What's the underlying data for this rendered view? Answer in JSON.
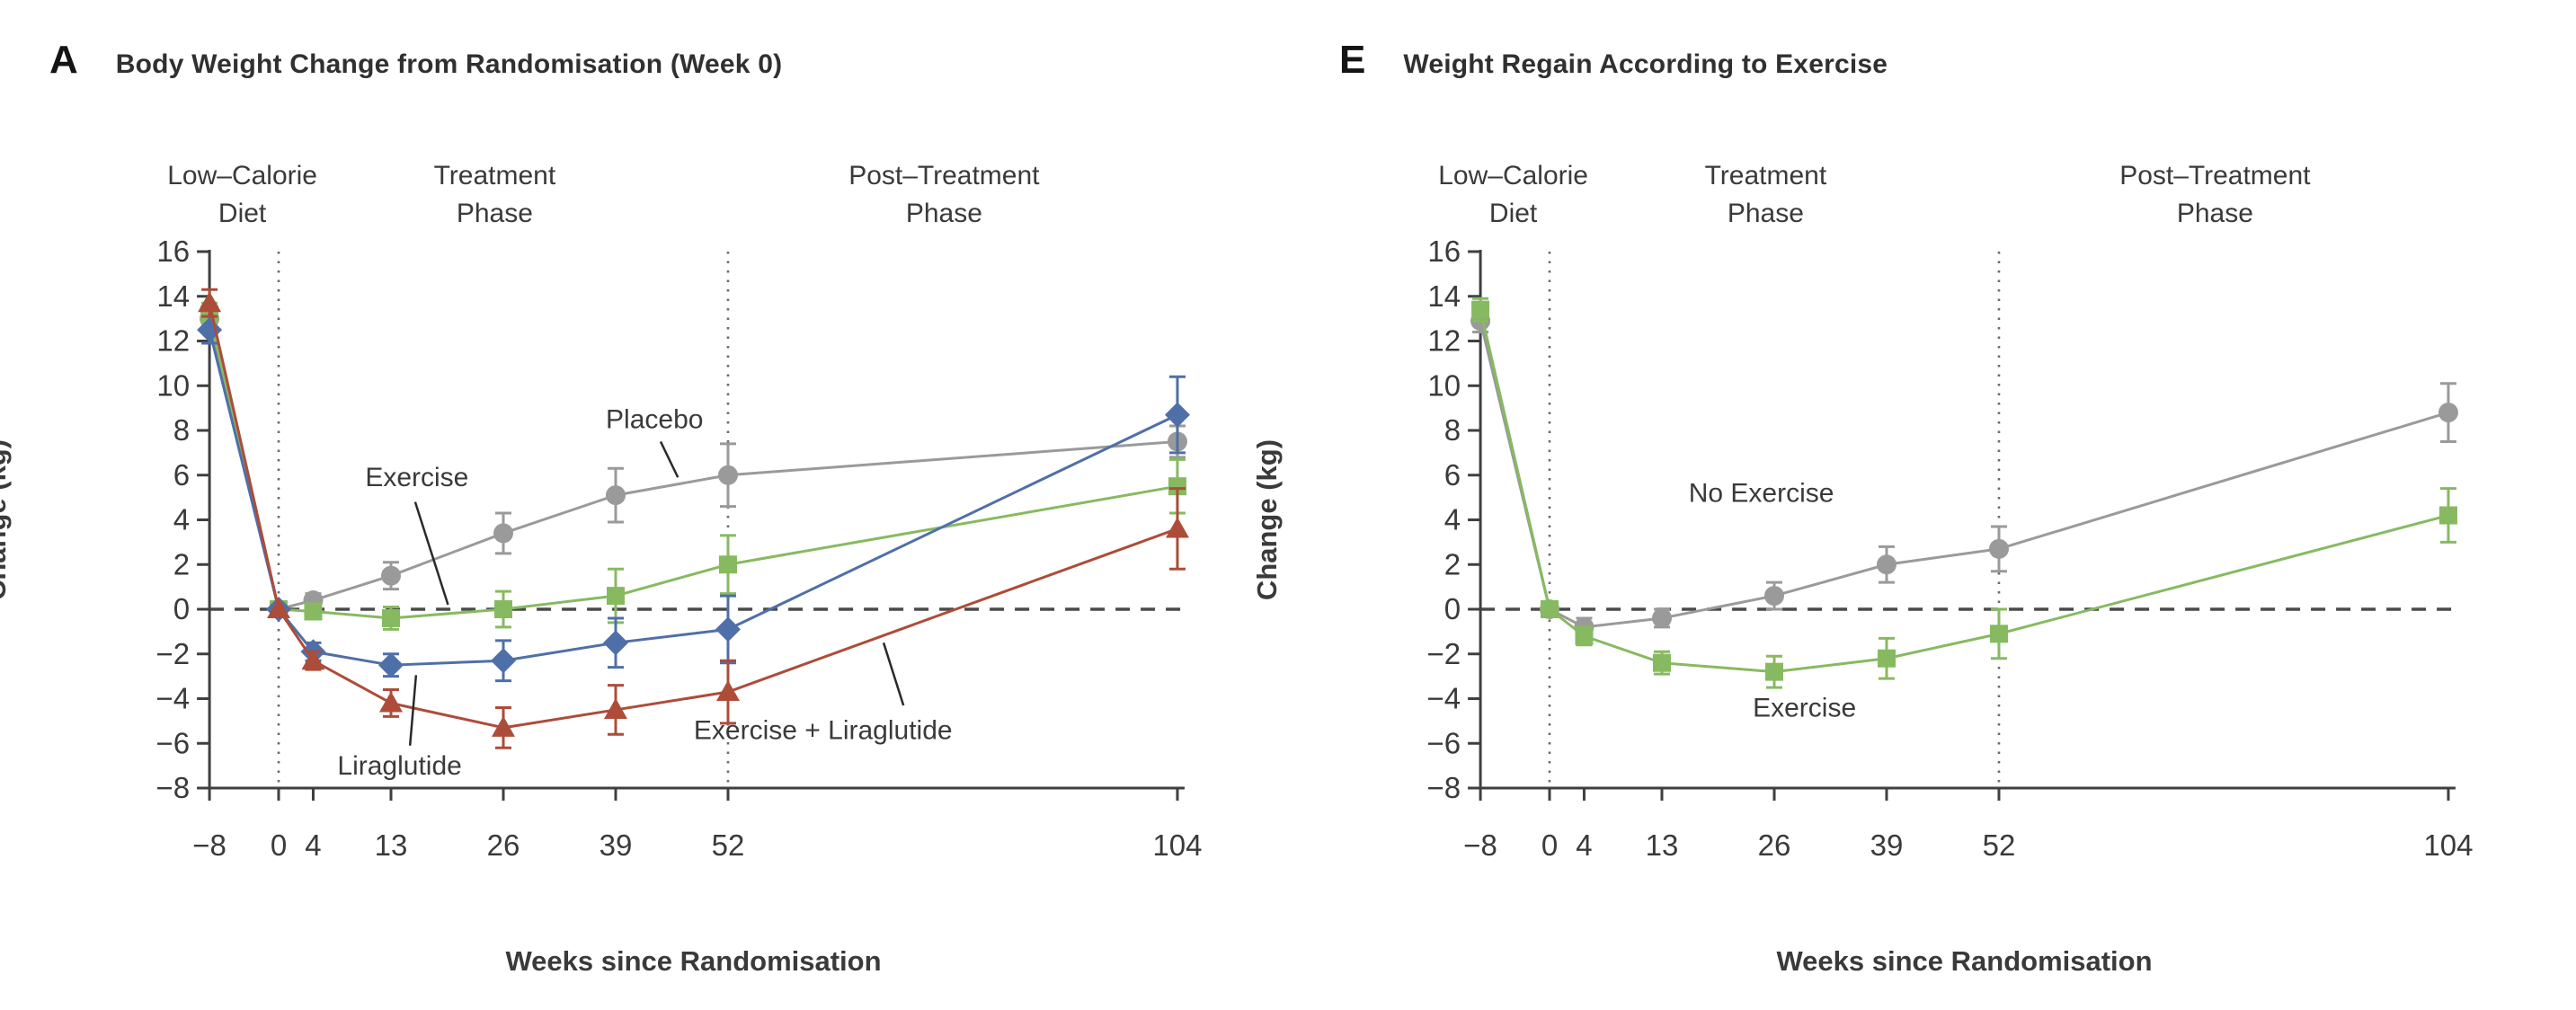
{
  "figure": {
    "background": "#ffffff"
  },
  "chart_data": [
    {
      "type": "line",
      "panel_letter": "A",
      "title": "Body Weight Change from Randomisation (Week 0)",
      "xlabel": "Weeks since Randomisation",
      "ylabel": "Change (kg)",
      "x_weeks": [
        -8,
        0,
        4,
        13,
        26,
        39,
        52,
        104
      ],
      "ylim": [
        -8,
        16
      ],
      "ytick_step": 2,
      "grid": "off",
      "reference_lines": {
        "horizontal_kg": 0,
        "vertical_weeks": [
          0,
          52
        ]
      },
      "phase_labels": [
        {
          "line1": "Low–Calorie",
          "line2": "Diet",
          "center_week": -4.2
        },
        {
          "line1": "Treatment",
          "line2": "Phase",
          "center_week": 25
        },
        {
          "line1": "Post–Treatment",
          "line2": "Phase",
          "center_week": 77
        }
      ],
      "series": [
        {
          "name": "Placebo",
          "marker": "circle",
          "color": "#9a9a9a",
          "values": [
            13.0,
            0,
            0.4,
            1.5,
            3.4,
            5.1,
            6.0,
            7.5
          ],
          "error": [
            0.5,
            0,
            0.3,
            0.6,
            0.9,
            1.2,
            1.4,
            0.7
          ]
        },
        {
          "name": "Exercise",
          "marker": "square",
          "color": "#87ba60",
          "values": [
            13.2,
            0,
            -0.1,
            -0.4,
            0.0,
            0.6,
            2.0,
            5.5
          ],
          "error": [
            0.5,
            0,
            0.3,
            0.5,
            0.8,
            1.2,
            1.3,
            1.2
          ]
        },
        {
          "name": "Liraglutide",
          "marker": "diamond",
          "color": "#4f6fa8",
          "values": [
            12.5,
            0,
            -1.9,
            -2.5,
            -2.3,
            -1.5,
            -0.9,
            8.7
          ],
          "error": [
            0.6,
            0,
            0.4,
            0.5,
            0.9,
            1.1,
            1.5,
            1.7
          ]
        },
        {
          "name": "Exercise + Liraglutide",
          "marker": "triangle",
          "color": "#ad4c39",
          "values": [
            13.7,
            0,
            -2.3,
            -4.2,
            -5.3,
            -4.5,
            -3.7,
            3.6
          ],
          "error": [
            0.6,
            0,
            0.4,
            0.6,
            0.9,
            1.1,
            1.4,
            1.8
          ]
        }
      ],
      "annotations": [
        {
          "text": "Exercise",
          "week": 16,
          "kg": 5.9,
          "anchor": "middle",
          "pointer": {
            "from": [
              15.8,
              4.8
            ],
            "to": [
              19.6,
              0.2
            ]
          }
        },
        {
          "text": "Placebo",
          "week": 43.5,
          "kg": 8.5,
          "anchor": "middle",
          "pointer": {
            "from": [
              44.2,
              7.5
            ],
            "to": [
              46.2,
              5.9
            ]
          }
        },
        {
          "text": "Liraglutide",
          "week": 14,
          "kg": -7.0,
          "anchor": "middle",
          "pointer": {
            "from": [
              15.2,
              -6.1
            ],
            "to": [
              15.9,
              -2.95
            ]
          }
        },
        {
          "text": "Exercise + Liraglutide",
          "week": 63,
          "kg": -5.4,
          "anchor": "middle",
          "pointer": {
            "from": [
              70,
              -1.5
            ],
            "to": [
              72.3,
              -4.3
            ]
          }
        }
      ]
    },
    {
      "type": "line",
      "panel_letter": "E",
      "title": "Weight Regain According to Exercise",
      "xlabel": "Weeks since Randomisation",
      "ylabel": "Change (kg)",
      "x_weeks": [
        -8,
        0,
        4,
        13,
        26,
        39,
        52,
        104
      ],
      "ylim": [
        -8,
        16
      ],
      "ytick_step": 2,
      "grid": "off",
      "reference_lines": {
        "horizontal_kg": 0,
        "vertical_weeks": [
          0,
          52
        ]
      },
      "phase_labels": [
        {
          "line1": "Low–Calorie",
          "line2": "Diet",
          "center_week": -4.2
        },
        {
          "line1": "Treatment",
          "line2": "Phase",
          "center_week": 25
        },
        {
          "line1": "Post–Treatment",
          "line2": "Phase",
          "center_week": 77
        }
      ],
      "series": [
        {
          "name": "No Exercise",
          "marker": "circle",
          "color": "#9a9a9a",
          "values": [
            12.9,
            0,
            -0.8,
            -0.4,
            0.6,
            2.0,
            2.7,
            8.8
          ],
          "error": [
            0.5,
            0,
            0.4,
            0.4,
            0.6,
            0.8,
            1.0,
            1.3
          ]
        },
        {
          "name": "Exercise",
          "marker": "square",
          "color": "#87ba60",
          "values": [
            13.4,
            0,
            -1.2,
            -2.4,
            -2.8,
            -2.2,
            -1.1,
            4.2
          ],
          "error": [
            0.5,
            0,
            0.4,
            0.5,
            0.7,
            0.9,
            1.1,
            1.2
          ]
        }
      ],
      "annotations": [
        {
          "text": "No Exercise",
          "week": 24.5,
          "kg": 5.2,
          "anchor": "middle",
          "pointer": null
        },
        {
          "text": "Exercise",
          "week": 29.5,
          "kg": -4.4,
          "anchor": "middle",
          "pointer": null
        }
      ]
    }
  ]
}
